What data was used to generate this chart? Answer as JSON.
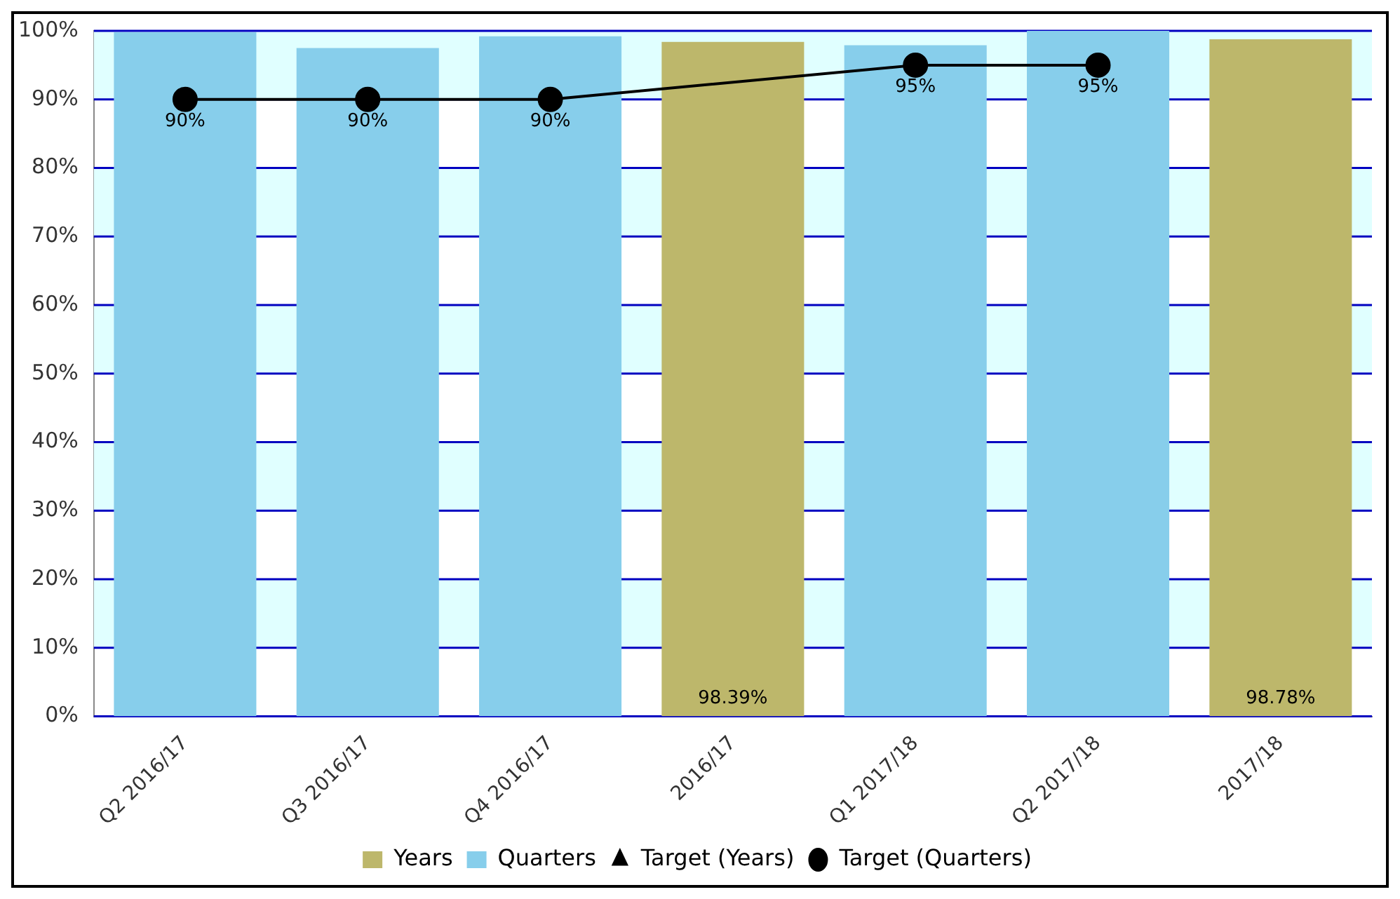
{
  "chart_data": {
    "type": "bar",
    "categories": [
      "Q2 2016/17",
      "Q3 2016/17",
      "Q4 2016/17",
      "2016/17",
      "Q1 2017/18",
      "Q2 2017/18",
      "2017/18"
    ],
    "series": [
      {
        "name": "Years",
        "color": "#bdb76b",
        "values": [
          null,
          null,
          null,
          98.39,
          null,
          null,
          98.78
        ],
        "value_labels": [
          null,
          null,
          null,
          "98.39%",
          null,
          null,
          "98.78%"
        ]
      },
      {
        "name": "Quarters",
        "color": "#87ceeb",
        "values": [
          99.8,
          97.5,
          99.2,
          null,
          97.9,
          100,
          null
        ]
      },
      {
        "name": "Target (Years)",
        "type": "line",
        "color": "#000000",
        "marker": "triangle",
        "values": [
          null,
          null,
          null,
          null,
          null,
          null,
          null
        ]
      },
      {
        "name": "Target (Quarters)",
        "type": "line",
        "color": "#000000",
        "marker": "circle",
        "values": [
          90,
          90,
          90,
          null,
          95,
          95,
          null
        ],
        "value_labels": [
          "90%",
          "90%",
          "90%",
          null,
          "95%",
          "95%",
          null
        ]
      }
    ],
    "ylim": [
      0,
      100
    ],
    "yticks": [
      {
        "value": 0,
        "label": "0%"
      },
      {
        "value": 10,
        "label": "10%"
      },
      {
        "value": 20,
        "label": "20%"
      },
      {
        "value": 30,
        "label": "30%"
      },
      {
        "value": 40,
        "label": "40%"
      },
      {
        "value": 50,
        "label": "50%"
      },
      {
        "value": 60,
        "label": "60%"
      },
      {
        "value": 70,
        "label": "70%"
      },
      {
        "value": 80,
        "label": "80%"
      },
      {
        "value": 90,
        "label": "90%"
      },
      {
        "value": 100,
        "label": "100%"
      }
    ],
    "grid": "y",
    "legend": "bottom"
  }
}
